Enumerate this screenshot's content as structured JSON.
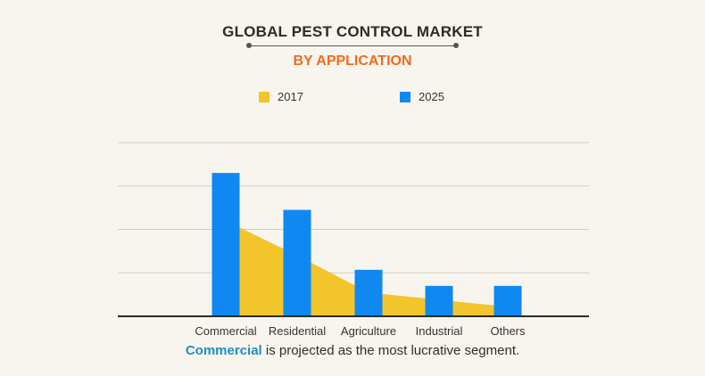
{
  "header": {
    "title": "GLOBAL PEST CONTROL MARKET",
    "subtitle": "BY APPLICATION"
  },
  "footer": {
    "highlight": "Commercial",
    "text": " is projected as the most lucrative segment."
  },
  "colors": {
    "series_2017": "#f2c52b",
    "series_2025": "#0f88f2",
    "subtitle": "#f26b1d",
    "highlight": "#1f8fbf"
  },
  "chart_data": {
    "type": "bar",
    "title": "GLOBAL PEST CONTROL MARKET",
    "subtitle": "BY APPLICATION",
    "categories": [
      "Commercial",
      "Residential",
      "Agriculture",
      "Industrial",
      "Others"
    ],
    "series": [
      {
        "name": "2017",
        "render": "area",
        "values": [
          2.2,
          1.4,
          0.55,
          0.38,
          0.22
        ]
      },
      {
        "name": "2025",
        "render": "bar",
        "values": [
          3.3,
          2.45,
          1.07,
          0.7,
          0.7
        ]
      }
    ],
    "ylim": [
      0,
      4
    ],
    "grid": true,
    "legend": "top-center",
    "xlabel": "",
    "ylabel": ""
  }
}
